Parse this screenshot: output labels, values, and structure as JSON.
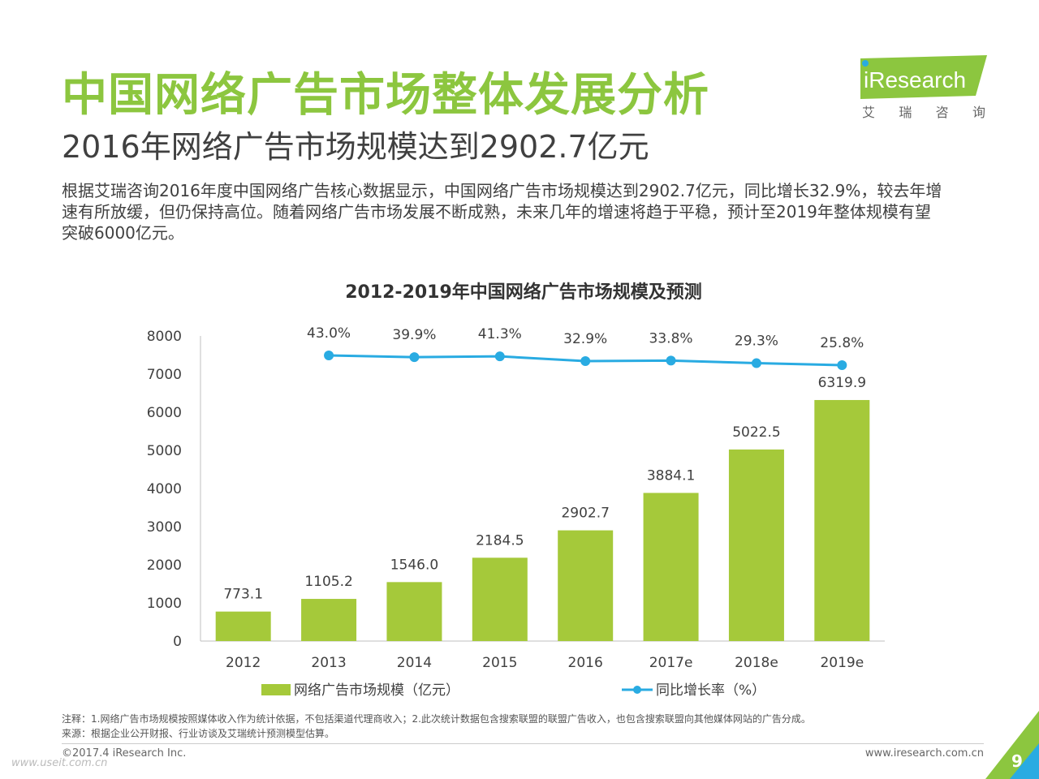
{
  "title": "中国网络广告市场整体发展分析",
  "subtitle": "2016年网络广告市场规模达到2902.7亿元",
  "intro_lines": [
    "根据艾瑞咨询2016年度中国网络广告核心数据显示，中国网络广告市场规模达到2902.7亿元，同比增长32.9%，较去年增",
    "速有所放缓，但仍保持高位。随着网络广告市场发展不断成熟，未来几年的增速将趋于平稳，预计至2019年整体规模有望",
    "突破6000亿元。"
  ],
  "logo": {
    "brand": "iResearch",
    "cn_name": "艾 瑞 咨 询"
  },
  "chart_data": {
    "type": "bar",
    "title": "2012-2019年中国网络广告市场规模及预测",
    "categories": [
      "2012",
      "2013",
      "2014",
      "2015",
      "2016",
      "2017e",
      "2018e",
      "2019e"
    ],
    "series": [
      {
        "name": "网络广告市场规模（亿元）",
        "type": "bar",
        "values": [
          773.1,
          1105.2,
          1546.0,
          2184.5,
          2902.7,
          3884.1,
          5022.5,
          6319.9
        ],
        "labels": [
          "773.1",
          "1105.2",
          "1546.0",
          "2184.5",
          "2902.7",
          "3884.1",
          "5022.5",
          "6319.9"
        ]
      },
      {
        "name": "同比增长率（%）",
        "type": "line",
        "values": [
          null,
          43.0,
          39.9,
          41.3,
          32.9,
          33.8,
          29.3,
          25.8
        ],
        "labels": [
          "",
          "43.0%",
          "39.9%",
          "41.3%",
          "32.9%",
          "33.8%",
          "29.3%",
          "25.8%"
        ]
      }
    ],
    "ylim": [
      0,
      8000
    ],
    "yticks": [
      "0",
      "1000",
      "2000",
      "3000",
      "4000",
      "5000",
      "6000",
      "7000",
      "8000"
    ],
    "xlabel": "",
    "ylabel": "",
    "grid": false,
    "legend_position": "bottom",
    "colors": {
      "bar": "#a5c93a",
      "line": "#29abe2"
    }
  },
  "notes": {
    "note": "注释：1.网络广告市场规模按照媒体收入作为统计依据，不包括渠道代理商收入；2.此次统计数据包含搜索联盟的联盟广告收入，也包含搜索联盟向其他媒体网站的广告分成。",
    "source": "来源：根据企业公开财报、行业访谈及艾瑞统计预测模型估算。"
  },
  "footer": {
    "copyright": "©2017.4 iResearch Inc.",
    "website": "www.iresearch.com.cn",
    "page_number": "9",
    "watermark": "www.useit.com.cn"
  },
  "colors": {
    "title": "#8cc63f",
    "accent": "#8cc63f"
  }
}
